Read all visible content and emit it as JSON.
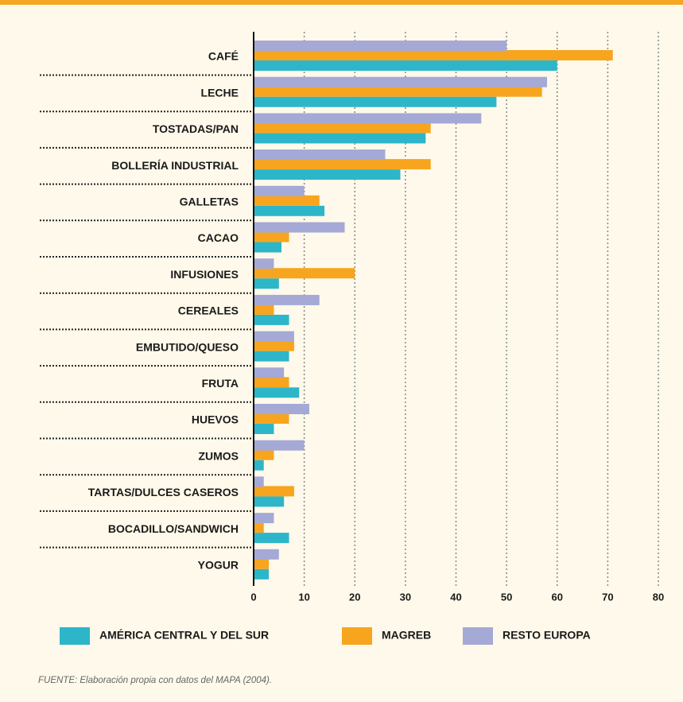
{
  "chart_data": {
    "type": "bar",
    "orientation": "horizontal",
    "categories": [
      "CAFÉ",
      "LECHE",
      "TOSTADAS/PAN",
      "BOLLERÍA INDUSTRIAL",
      "GALLETAS",
      "CACAO",
      "INFUSIONES",
      "CEREALES",
      "EMBUTIDO/QUESO",
      "FRUTA",
      "HUEVOS",
      "ZUMOS",
      "TARTAS/DULCES CASEROS",
      "BOCADILLO/SANDWICH",
      "YOGUR"
    ],
    "series": [
      {
        "name": "AMÉRICA CENTRAL Y DEL SUR",
        "color": "#2db6c9",
        "values": [
          60,
          48,
          34,
          29,
          14,
          5.5,
          5,
          7,
          7,
          9,
          4,
          2,
          6,
          7,
          3
        ]
      },
      {
        "name": "MAGREB",
        "color": "#f7a51e",
        "values": [
          71,
          57,
          35,
          35,
          13,
          7,
          20,
          4,
          8,
          7,
          7,
          4,
          8,
          2,
          3
        ]
      },
      {
        "name": "RESTO EUROPA",
        "color": "#a4a9d6",
        "values": [
          50,
          58,
          45,
          26,
          10,
          18,
          4,
          13,
          8,
          6,
          11,
          10,
          2,
          4,
          5
        ]
      }
    ],
    "xlim": [
      0,
      80
    ],
    "xticks": [
      0,
      10,
      20,
      30,
      40,
      50,
      60,
      70,
      80
    ],
    "grid": true,
    "source": "FUENTE: Elaboración propia con datos del MAPA (2004)."
  }
}
